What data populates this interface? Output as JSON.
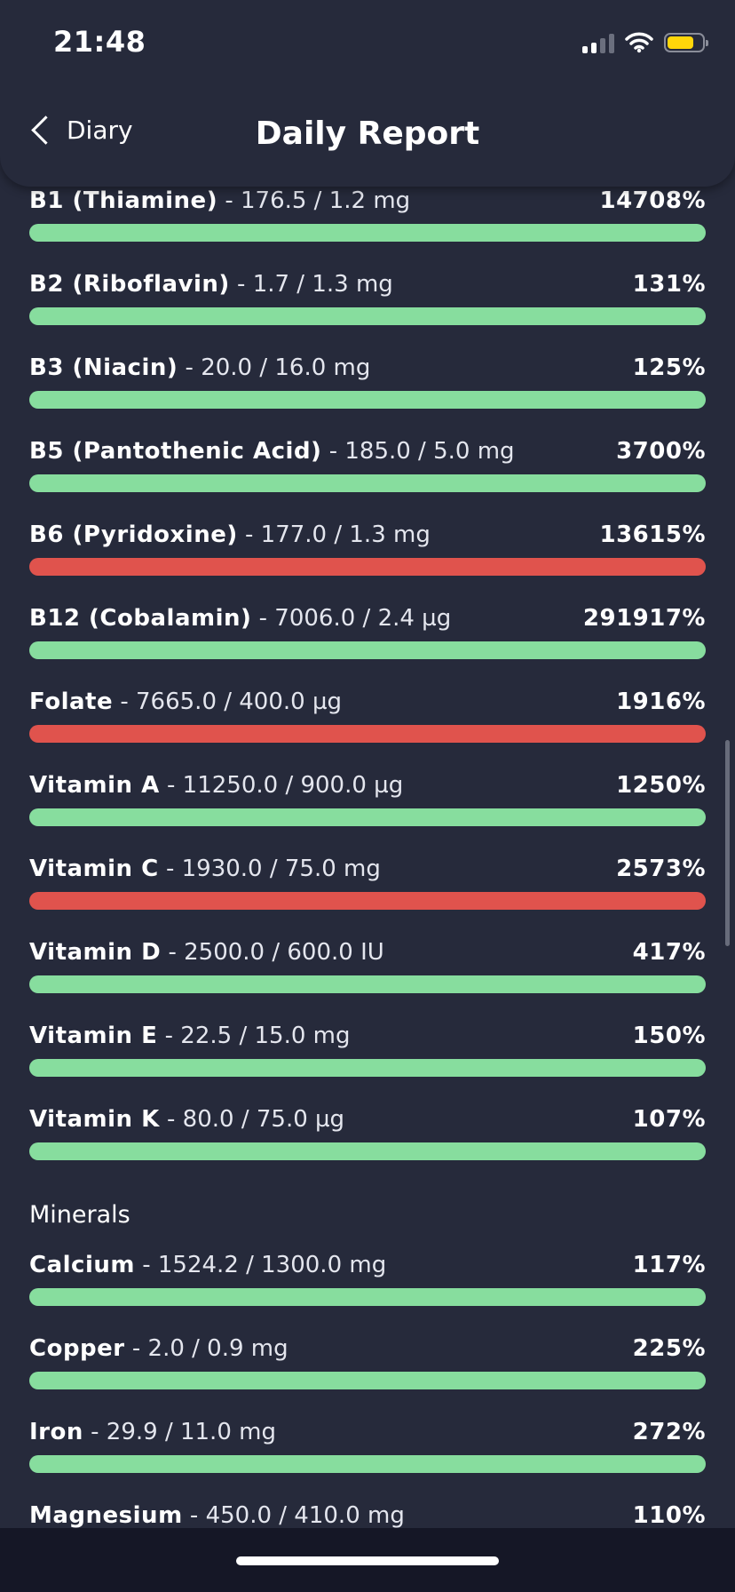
{
  "status_bar": {
    "time": "21:48",
    "battery_color": "#ffd60a"
  },
  "nav": {
    "back_label": "Diary",
    "title": "Daily Report"
  },
  "colors": {
    "ok": "#87dd9e",
    "over": "#e0534d",
    "background": "#262a3b"
  },
  "vitamins": [
    {
      "name": "B1 (Thiamine)",
      "amount": " - 176.5 / 1.2 mg",
      "percent": "14708%",
      "status": "ok"
    },
    {
      "name": "B2 (Riboflavin)",
      "amount": " - 1.7 / 1.3 mg",
      "percent": "131%",
      "status": "ok"
    },
    {
      "name": "B3 (Niacin)",
      "amount": " - 20.0 / 16.0 mg",
      "percent": "125%",
      "status": "ok"
    },
    {
      "name": "B5 (Pantothenic Acid)",
      "amount": " - 185.0 / 5.0 mg",
      "percent": "3700%",
      "status": "ok"
    },
    {
      "name": "B6 (Pyridoxine)",
      "amount": " - 177.0 / 1.3 mg",
      "percent": "13615%",
      "status": "over"
    },
    {
      "name": "B12 (Cobalamin)",
      "amount": " - 7006.0 / 2.4 µg",
      "percent": "291917%",
      "status": "ok"
    },
    {
      "name": "Folate",
      "amount": " - 7665.0 / 400.0 µg",
      "percent": "1916%",
      "status": "over"
    },
    {
      "name": "Vitamin A",
      "amount": " - 11250.0 / 900.0 µg",
      "percent": "1250%",
      "status": "ok"
    },
    {
      "name": "Vitamin C",
      "amount": " - 1930.0 / 75.0 mg",
      "percent": "2573%",
      "status": "over"
    },
    {
      "name": "Vitamin D",
      "amount": " - 2500.0 / 600.0 IU",
      "percent": "417%",
      "status": "ok"
    },
    {
      "name": "Vitamin E",
      "amount": " - 22.5 / 15.0 mg",
      "percent": "150%",
      "status": "ok"
    },
    {
      "name": "Vitamin K",
      "amount": " - 80.0 / 75.0 µg",
      "percent": "107%",
      "status": "ok"
    }
  ],
  "minerals_section": {
    "title": "Minerals"
  },
  "minerals": [
    {
      "name": "Calcium",
      "amount": " - 1524.2 / 1300.0 mg",
      "percent": "117%",
      "status": "ok"
    },
    {
      "name": "Copper",
      "amount": " - 2.0 / 0.9 mg",
      "percent": "225%",
      "status": "ok"
    },
    {
      "name": "Iron",
      "amount": " - 29.9 / 11.0 mg",
      "percent": "272%",
      "status": "ok"
    },
    {
      "name": "Magnesium",
      "amount": " - 450.0 / 410.0 mg",
      "percent": "110%",
      "status": "ok"
    }
  ]
}
